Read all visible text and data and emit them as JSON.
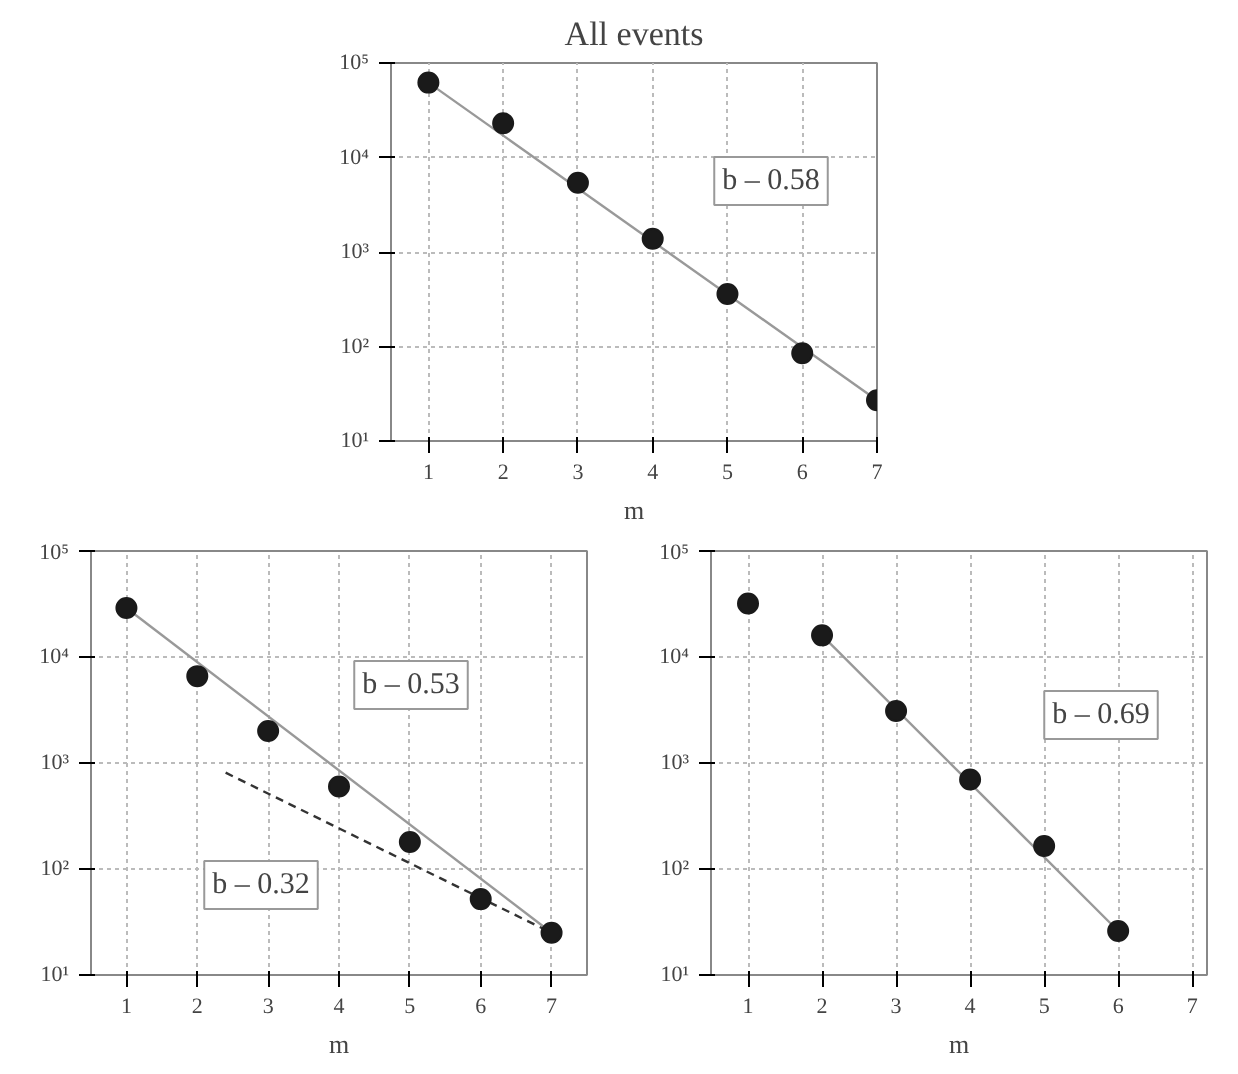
{
  "chart_data": [
    {
      "type": "scatter",
      "title": "All events",
      "xlabel": "m",
      "xlim": [
        0.5,
        7
      ],
      "xticks": [
        1,
        2,
        3,
        4,
        5,
        6,
        7
      ],
      "ylim": [
        10,
        100000
      ],
      "log": "y",
      "yticks": [
        {
          "value": 10,
          "label": "10¹"
        },
        {
          "value": 100,
          "label": "10²"
        },
        {
          "value": 1000,
          "label": "10³"
        },
        {
          "value": 10000,
          "label": "10⁴"
        },
        {
          "value": 100000,
          "label": "10⁵"
        }
      ],
      "grid": true,
      "series": [
        {
          "type": "line",
          "color": "#999999",
          "x": [
            1,
            7
          ],
          "values": [
            62000,
            27
          ],
          "line_style": "solid"
        },
        {
          "color": "#1a1a1a",
          "marker": "circle",
          "x": [
            1,
            2,
            3,
            4,
            5,
            6,
            7
          ],
          "values": [
            62000,
            23000,
            5400,
            1380,
            360,
            85,
            27
          ]
        }
      ],
      "annotations": [
        "b – 0.58"
      ]
    },
    {
      "type": "scatter",
      "xlabel": "m",
      "xlim": [
        0.5,
        7.5
      ],
      "xticks": [
        1,
        2,
        3,
        4,
        5,
        6,
        7
      ],
      "ylim": [
        10,
        100000
      ],
      "log": "y",
      "yticks": [
        {
          "value": 10,
          "label": "10¹"
        },
        {
          "value": 100,
          "label": "10²"
        },
        {
          "value": 1000,
          "label": "10³"
        },
        {
          "value": 10000,
          "label": "10⁴"
        },
        {
          "value": 100000,
          "label": "10⁵"
        }
      ],
      "grid": true,
      "series": [
        {
          "type": "line",
          "color": "#999999",
          "x": [
            1,
            7
          ],
          "values": [
            29000,
            25
          ],
          "line_style": "solid"
        },
        {
          "type": "line",
          "color": "#333333",
          "x": [
            2.4,
            7
          ],
          "values": [
            810,
            25
          ],
          "line_style": "dashed"
        },
        {
          "color": "#1a1a1a",
          "marker": "circle",
          "x": [
            1,
            2,
            3,
            4,
            5,
            6,
            7
          ],
          "values": [
            29000,
            6600,
            2000,
            600,
            180,
            52,
            25
          ]
        }
      ],
      "annotations": [
        "b – 0.53",
        "b – 0.32"
      ]
    },
    {
      "type": "scatter",
      "xlabel": "m",
      "xlim": [
        0.5,
        7.2
      ],
      "xticks": [
        1,
        2,
        3,
        4,
        5,
        6,
        7
      ],
      "ylim": [
        10,
        100000
      ],
      "log": "y",
      "yticks": [
        {
          "value": 10,
          "label": "10¹"
        },
        {
          "value": 100,
          "label": "10²"
        },
        {
          "value": 1000,
          "label": "10³"
        },
        {
          "value": 10000,
          "label": "10⁴"
        },
        {
          "value": 100000,
          "label": "10⁵"
        }
      ],
      "grid": true,
      "series": [
        {
          "type": "line",
          "color": "#999999",
          "x": [
            2,
            6
          ],
          "values": [
            16000,
            26
          ],
          "line_style": "solid"
        },
        {
          "color": "#1a1a1a",
          "marker": "circle",
          "x": [
            1,
            2,
            3,
            4,
            5,
            6
          ],
          "values": [
            32000,
            16000,
            3100,
            700,
            165,
            26
          ]
        }
      ],
      "annotations": [
        "b – 0.69"
      ]
    }
  ]
}
